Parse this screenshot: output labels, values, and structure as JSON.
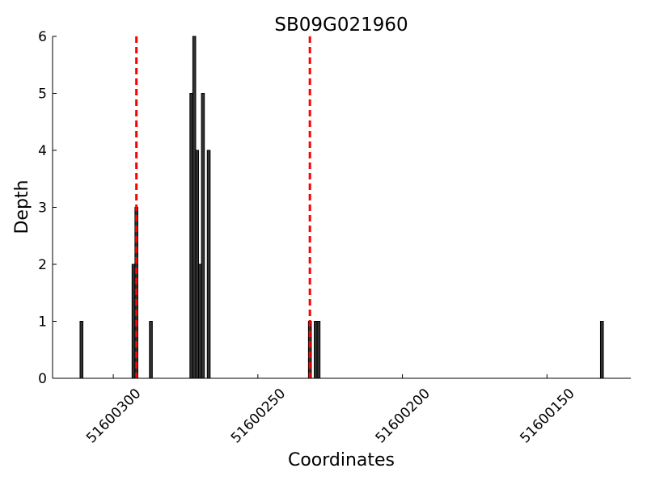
{
  "chart_data": {
    "type": "bar",
    "title": "SB09G021960",
    "xlabel": "Coordinates",
    "ylabel": "Depth",
    "x": [
      51600311,
      51600293,
      51600292,
      51600287,
      51600273,
      51600272,
      51600271,
      51600270,
      51600269,
      51600267,
      51600232,
      51600230,
      51600229,
      51600131
    ],
    "values": [
      1,
      2,
      3,
      1,
      5,
      6,
      4,
      2,
      5,
      4,
      1,
      1,
      1,
      1
    ],
    "color": "#333333",
    "xlim": [
      51600321,
      51600121
    ],
    "xticks": [
      51600300,
      51600250,
      51600200,
      51600150
    ],
    "ylim": [
      0,
      6
    ],
    "yticks": [
      0,
      1,
      2,
      3,
      4,
      5,
      6
    ],
    "vlines": [
      51600292,
      51600232
    ],
    "vline_color": "#ff0000",
    "grid": false
  }
}
